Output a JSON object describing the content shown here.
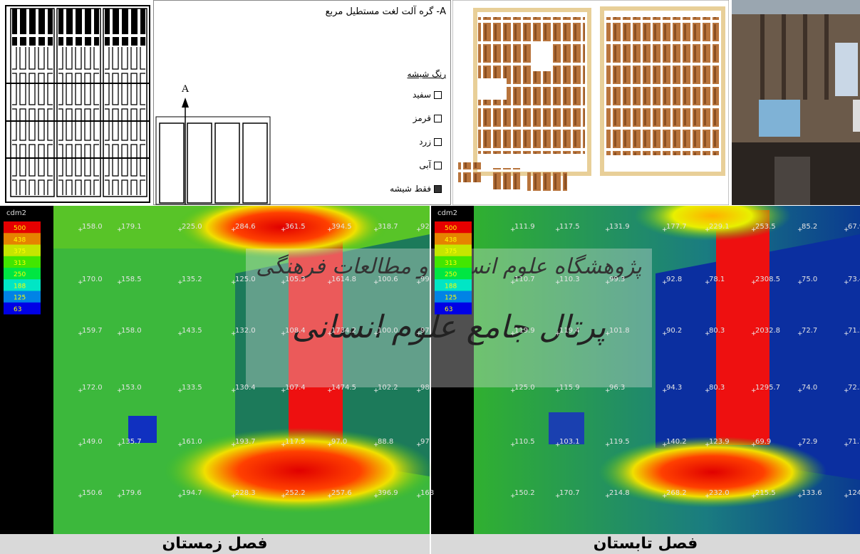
{
  "glass_panel": {
    "title": "A- گره آلت لغت مستطیل مربع",
    "section_label": "A",
    "color_heading": "رنگ شیشه",
    "options": [
      "سفید",
      "قرمز",
      "زرد",
      "آبی",
      "فقط شیشه"
    ]
  },
  "renders": [
    {
      "unit": "cdm2",
      "legend": [
        "500",
        "438",
        "375",
        "313",
        "250",
        "188",
        "125",
        "63"
      ],
      "grid": [
        [
          "158.0",
          "179.1",
          "225.0",
          "284.6",
          "361.5",
          "394.5",
          "318.7",
          "92"
        ],
        [
          "170.0",
          "158.5",
          "135.2",
          "125.0",
          "105.3",
          "1614.8",
          "100.6",
          "99"
        ],
        [
          "159.7",
          "158.0",
          "143.5",
          "132.0",
          "108.4",
          "1734.2",
          "100.0",
          "97"
        ],
        [
          "172.0",
          "153.0",
          "133.5",
          "130.4",
          "107.4",
          "1474.5",
          "102.2",
          "98"
        ],
        [
          "149.0",
          "135.7",
          "161.0",
          "193.7",
          "117.5",
          "97.0",
          "88.8",
          "97"
        ],
        [
          "150.6",
          "179.6",
          "194.7",
          "228.3",
          "252.2",
          "257.6",
          "396.9",
          "168"
        ]
      ],
      "caption": "فصل زمستان"
    },
    {
      "unit": "cdm2",
      "legend": [
        "500",
        "438",
        "375",
        "313",
        "250",
        "188",
        "125",
        "63"
      ],
      "grid": [
        [
          "111.9",
          "117.5",
          "131.9",
          "177.7",
          "229.1",
          "253.5",
          "85.2",
          "67.9"
        ],
        [
          "110.7",
          "110.3",
          "99.3",
          "92.8",
          "78.1",
          "2308.5",
          "75.0",
          "73.4"
        ],
        [
          "119.9",
          "119.4",
          "101.8",
          "90.2",
          "80.3",
          "2032.8",
          "72.7",
          "71.5"
        ],
        [
          "125.0",
          "115.9",
          "96.3",
          "94.3",
          "80.3",
          "1295.7",
          "74.0",
          "72.3"
        ],
        [
          "110.5",
          "103.1",
          "119.5",
          "140.2",
          "123.9",
          "69.9",
          "72.9",
          "71.7"
        ],
        [
          "150.2",
          "170.7",
          "214.8",
          "268.2",
          "232.0",
          "215.5",
          "133.6",
          "124"
        ]
      ],
      "caption": "فصل تابستان"
    }
  ],
  "watermark": [
    "پژوهشگاه علوم انسانی و مطالعات فرهنگی",
    "پرتال جامع علوم انسانی"
  ]
}
